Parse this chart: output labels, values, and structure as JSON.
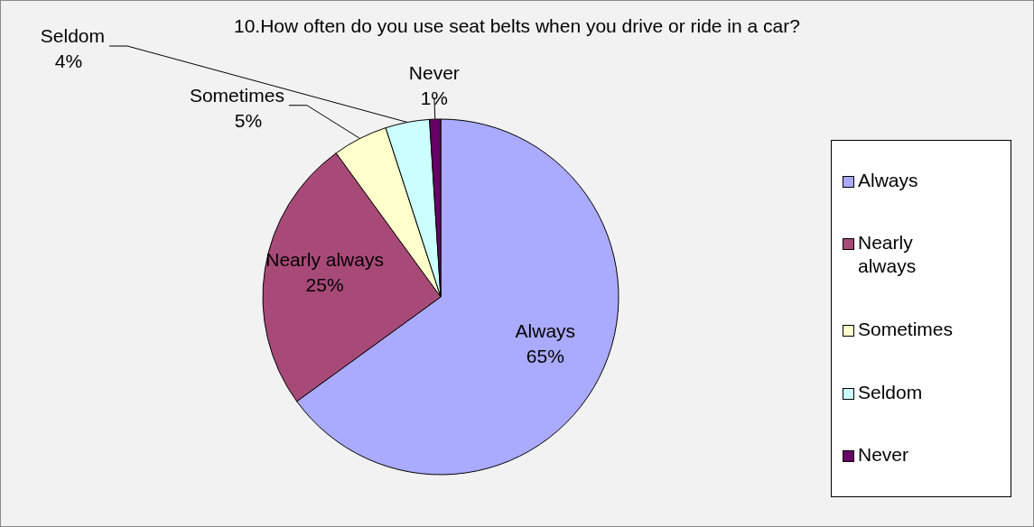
{
  "chart_data": {
    "type": "pie",
    "title": "10.How often do you use seat belts when you drive or ride in a car?",
    "categories": [
      "Always",
      "Nearly always",
      "Sometimes",
      "Seldom",
      "Never"
    ],
    "values": [
      65,
      25,
      5,
      4,
      1
    ],
    "value_labels": [
      "65%",
      "25%",
      "5%",
      "4%",
      "1%"
    ],
    "colors": [
      "#aaaaff",
      "#a84a78",
      "#ffffcc",
      "#ccffff",
      "#660066"
    ],
    "legend": "right"
  }
}
